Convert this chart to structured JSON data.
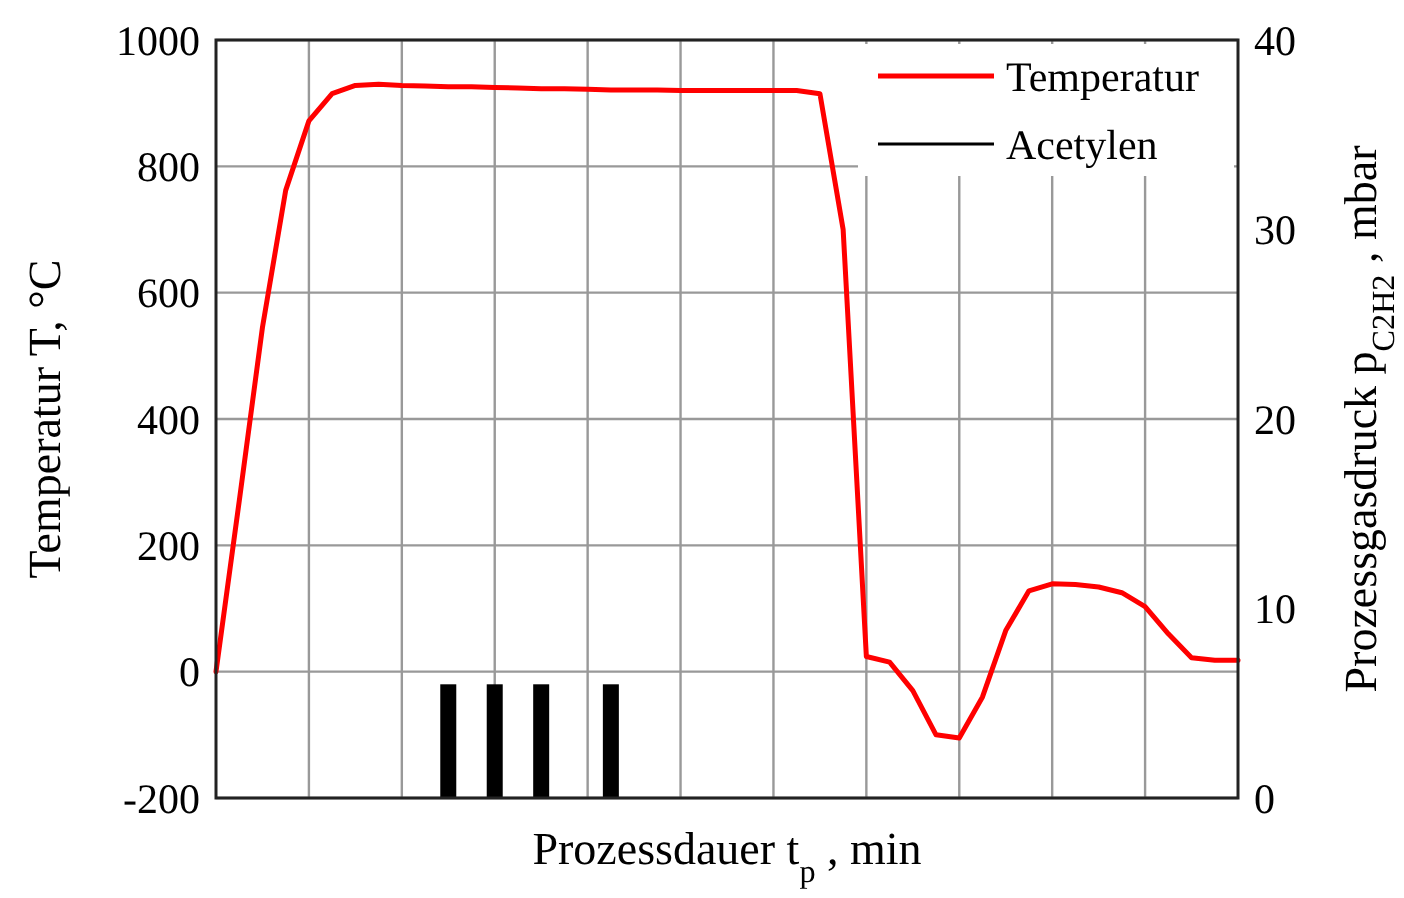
{
  "chart_data": {
    "type": "line",
    "xlabel": "Prozessdauer t$_{p}$ , min",
    "ylabel": "Temperatur T, °C",
    "y2label": "Prozessgasdruck p$_{C2H2}$ , mbar",
    "categories": [
      null,
      null,
      null,
      null,
      null,
      null,
      null,
      null,
      null,
      null,
      null,
      null,
      null,
      null,
      null,
      null,
      null,
      null,
      null,
      null,
      null,
      null,
      null,
      null,
      null,
      null,
      null,
      null,
      null,
      null,
      null,
      null,
      null,
      null,
      null,
      null,
      null,
      null,
      null,
      null,
      null,
      null,
      null,
      null,
      null
    ],
    "ylim": [
      -200,
      1000
    ],
    "yticks": [
      -200,
      0,
      200,
      400,
      600,
      800,
      1000
    ],
    "y2lim": [
      0,
      40
    ],
    "y2ticks": [
      0,
      10,
      20,
      30,
      40
    ],
    "grid": true,
    "legend": "top right",
    "series": [
      {
        "name": "Temperatur",
        "color": "#ff0000",
        "values": [
          0,
          270,
          545,
          762,
          872,
          915,
          928,
          930,
          928,
          927,
          926,
          926,
          925,
          924,
          923,
          923,
          922,
          921,
          921,
          921,
          920,
          920,
          920,
          920,
          920,
          920,
          915,
          700,
          24,
          15,
          -30,
          -100,
          -105,
          -40,
          65,
          128,
          139,
          138,
          134,
          125,
          103,
          60,
          22,
          18,
          18
        ]
      },
      {
        "name": "Acetylen",
        "color": "#000000",
        "type": "bar",
        "axis": "y2",
        "values": [
          null,
          null,
          null,
          null,
          null,
          null,
          null,
          null,
          null,
          null,
          6,
          null,
          6,
          null,
          6,
          null,
          null,
          6,
          null,
          null,
          null,
          null,
          null,
          null,
          null,
          null,
          null,
          null,
          null,
          null,
          null,
          null,
          null,
          null,
          null,
          null,
          null,
          null,
          null,
          null,
          null,
          null,
          null,
          null,
          null
        ]
      }
    ]
  }
}
